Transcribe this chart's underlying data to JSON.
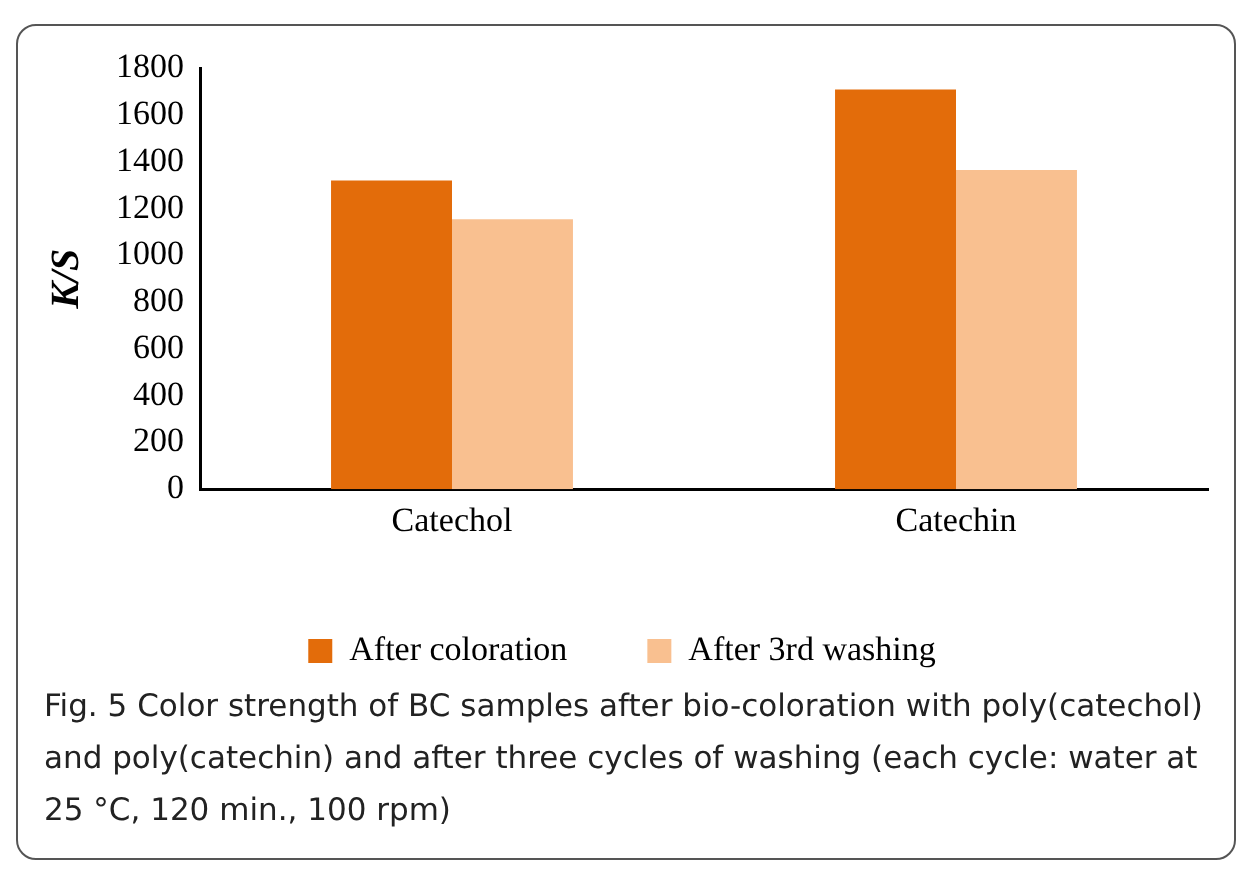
{
  "chart_data": {
    "type": "bar",
    "ylabel": "K/S",
    "categories": [
      "Catechol",
      "Catechin"
    ],
    "series": [
      {
        "name": "After coloration",
        "color": "#e36c0a",
        "values": [
          1320,
          1710
        ]
      },
      {
        "name": "After 3rd washing",
        "color": "#f9c090",
        "values": [
          1155,
          1365
        ]
      }
    ],
    "ylim": [
      0,
      1800
    ],
    "yticks": [
      0,
      200,
      400,
      600,
      800,
      1000,
      1200,
      1400,
      1600,
      1800
    ],
    "grid": false,
    "legend": "bottom",
    "annotations": [
      "Fig. 5 Color strength of BC samples after bio-coloration with poly(catechol) and poly(catechin) and after three cycles of washing (each cycle: water at 25 °C, 120 min., 100 rpm)"
    ]
  }
}
